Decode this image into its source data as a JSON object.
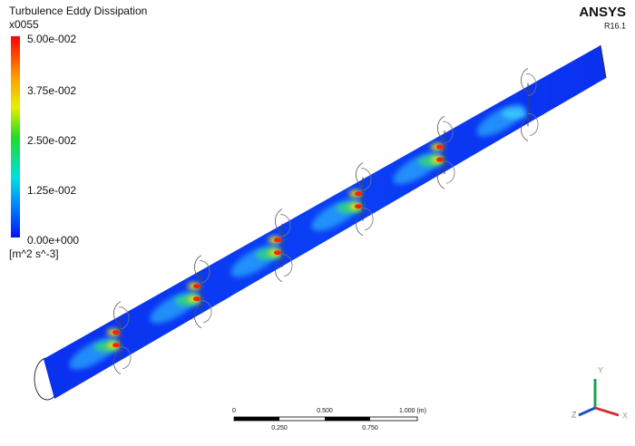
{
  "legend": {
    "title": "Turbulence Eddy Dissipation",
    "variable": "x0055",
    "labels": [
      "5.00e-002",
      "3.75e-002",
      "2.50e-002",
      "1.25e-002",
      "0.00e+000"
    ],
    "units": "[m^2 s^-3]"
  },
  "brand": {
    "name": "ANSYS",
    "version": "R16.1"
  },
  "scale_bar": {
    "top_labels": [
      "0",
      "0.500",
      "1.000 (m)"
    ],
    "bottom_labels": [
      "0.250",
      "0.750"
    ]
  },
  "axes": {
    "y": "Y",
    "z": "Z",
    "x": "X"
  }
}
